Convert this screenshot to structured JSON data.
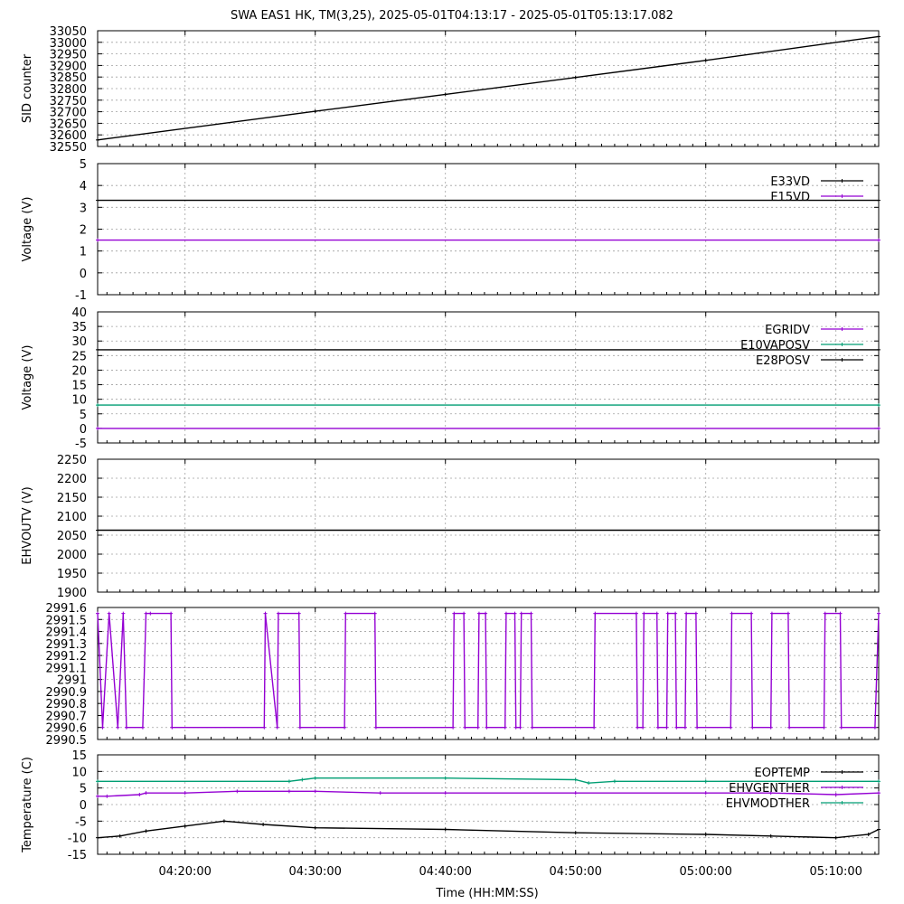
{
  "title": "SWA EAS1 HK, TM(3,25),  2025-05-01T04:13:17 - 2025-05-01T05:13:17.082",
  "xlabel": "Time (HH:MM:SS)",
  "colors": {
    "black": "#000000",
    "purple": "#9400d3",
    "teal": "#009e73",
    "grid": "#a0a0a0"
  },
  "chart_data": [
    {
      "type": "line",
      "ylabel": "SID counter",
      "ylim": [
        32550,
        33050
      ],
      "yticks": [
        "32550",
        "32600",
        "32650",
        "32700",
        "32750",
        "32800",
        "32850",
        "32900",
        "32950",
        "33000",
        "33050"
      ],
      "xlim": [
        "04:13:17",
        "05:13:17"
      ],
      "xticks": [
        "04:20:00",
        "04:30:00",
        "04:40:00",
        "04:50:00",
        "05:00:00",
        "05:10:00"
      ],
      "grid": true,
      "legend": "none",
      "series": [
        {
          "color": "#000000",
          "x": [
            "04:13:17",
            "04:30:00",
            "04:40:00",
            "04:50:00",
            "05:00:00",
            "05:13:17"
          ],
          "values": [
            32578,
            32702,
            32775,
            32848,
            32922,
            33025
          ]
        }
      ]
    },
    {
      "type": "line",
      "ylabel": "Voltage (V)",
      "ylim": [
        -1,
        5
      ],
      "yticks": [
        "-1",
        "0",
        "1",
        "2",
        "3",
        "4",
        "5"
      ],
      "xlim": [
        "04:13:17",
        "05:13:17"
      ],
      "xticks": [
        "04:20:00",
        "04:30:00",
        "04:40:00",
        "04:50:00",
        "05:00:00",
        "05:10:00"
      ],
      "grid": true,
      "legend": "top-right",
      "series": [
        {
          "name": "E33VD",
          "color": "#000000",
          "x": [
            "04:13:17",
            "05:13:17"
          ],
          "values": [
            3.32,
            3.32
          ]
        },
        {
          "name": "E15VD",
          "color": "#9400d3",
          "x": [
            "04:13:17",
            "05:13:17"
          ],
          "values": [
            1.5,
            1.5
          ]
        }
      ]
    },
    {
      "type": "line",
      "ylabel": "Voltage (V)",
      "ylim": [
        -5,
        40
      ],
      "yticks": [
        "-5",
        "0",
        "5",
        "10",
        "15",
        "20",
        "25",
        "30",
        "35",
        "40"
      ],
      "xlim": [
        "04:13:17",
        "05:13:17"
      ],
      "xticks": [
        "04:20:00",
        "04:30:00",
        "04:40:00",
        "04:50:00",
        "05:00:00",
        "05:10:00"
      ],
      "grid": true,
      "legend": "top-right",
      "series": [
        {
          "name": "EGRIDV",
          "color": "#9400d3",
          "x": [
            "04:13:17",
            "05:13:17"
          ],
          "values": [
            0,
            0
          ]
        },
        {
          "name": "E10VAPOSV",
          "color": "#009e73",
          "x": [
            "04:13:17",
            "05:13:17"
          ],
          "values": [
            8,
            8
          ]
        },
        {
          "name": "E28POSV",
          "color": "#000000",
          "x": [
            "04:13:17",
            "05:13:17"
          ],
          "values": [
            27,
            27
          ]
        }
      ]
    },
    {
      "type": "line",
      "ylabel": "EHVOUTV (V)",
      "ylim": [
        1900,
        2250
      ],
      "yticks": [
        "1900",
        "1950",
        "2000",
        "2050",
        "2100",
        "2150",
        "2200",
        "2250"
      ],
      "xlim": [
        "04:13:17",
        "05:13:17"
      ],
      "xticks": [
        "04:20:00",
        "04:30:00",
        "04:40:00",
        "04:50:00",
        "05:00:00",
        "05:10:00"
      ],
      "grid": true,
      "legend": "none",
      "series": [
        {
          "color": "#000000",
          "x": [
            "04:13:17",
            "05:13:17"
          ],
          "values": [
            2063,
            2063
          ]
        }
      ]
    },
    {
      "type": "line",
      "ylabel": "",
      "ylim": [
        2990.5,
        2991.6
      ],
      "yticks": [
        "2990.5",
        "2990.6",
        "2990.7",
        "2990.8",
        "2990.9",
        "2991",
        "2991.1",
        "2991.2",
        "2991.3",
        "2991.4",
        "2991.5",
        "2991.6"
      ],
      "xlim": [
        "04:13:17",
        "05:13:17"
      ],
      "xticks": [
        "04:20:00",
        "04:30:00",
        "04:40:00",
        "04:50:00",
        "05:00:00",
        "05:10:00"
      ],
      "grid": true,
      "legend": "none",
      "series": [
        {
          "color": "#9400d3",
          "x": [
            "04:13:17",
            "04:13:40",
            "04:14:10",
            "04:14:50",
            "04:15:15",
            "04:15:30",
            "04:16:45",
            "04:17:00",
            "04:17:20",
            "04:18:55",
            "04:19:00",
            "04:26:05",
            "04:26:10",
            "04:27:05",
            "04:27:10",
            "04:28:45",
            "04:28:50",
            "04:32:15",
            "04:32:20",
            "04:34:35",
            "04:34:40",
            "04:40:35",
            "04:40:40",
            "04:41:25",
            "04:41:30",
            "04:42:30",
            "04:42:35",
            "04:43:05",
            "04:43:10",
            "04:44:35",
            "04:44:40",
            "04:45:20",
            "04:45:25",
            "04:45:45",
            "04:45:50",
            "04:46:35",
            "04:46:40",
            "04:51:25",
            "04:51:30",
            "04:54:40",
            "04:54:45",
            "04:55:10",
            "04:55:15",
            "04:56:15",
            "04:56:20",
            "04:57:00",
            "04:57:05",
            "04:57:40",
            "04:57:45",
            "04:58:25",
            "04:58:30",
            "04:59:15",
            "04:59:20",
            "05:01:55",
            "05:02:00",
            "05:03:30",
            "05:03:35",
            "05:05:00",
            "05:05:05",
            "05:06:20",
            "05:06:25",
            "05:09:05",
            "05:09:10",
            "05:10:20",
            "05:10:25",
            "05:13:00",
            "05:13:17"
          ],
          "values": [
            2991.55,
            2990.6,
            2991.55,
            2990.6,
            2991.55,
            2990.6,
            2990.6,
            2991.55,
            2991.55,
            2991.55,
            2990.6,
            2990.6,
            2991.55,
            2990.6,
            2991.55,
            2991.55,
            2990.6,
            2990.6,
            2991.55,
            2991.55,
            2990.6,
            2990.6,
            2991.55,
            2991.55,
            2990.6,
            2990.6,
            2991.55,
            2991.55,
            2990.6,
            2990.6,
            2991.55,
            2991.55,
            2990.6,
            2990.6,
            2991.55,
            2991.55,
            2990.6,
            2990.6,
            2991.55,
            2991.55,
            2990.6,
            2990.6,
            2991.55,
            2991.55,
            2990.6,
            2990.6,
            2991.55,
            2991.55,
            2990.6,
            2990.6,
            2991.55,
            2991.55,
            2990.6,
            2990.6,
            2991.55,
            2991.55,
            2990.6,
            2990.6,
            2991.55,
            2991.55,
            2990.6,
            2990.6,
            2991.55,
            2991.55,
            2990.6,
            2990.6,
            2991.55
          ]
        }
      ]
    },
    {
      "type": "line",
      "ylabel": "Temperature (C)",
      "ylim": [
        -15,
        15
      ],
      "yticks": [
        "-15",
        "-10",
        "-5",
        "0",
        "5",
        "10",
        "15"
      ],
      "xlim": [
        "04:13:17",
        "05:13:17"
      ],
      "xticks": [
        "04:20:00",
        "04:30:00",
        "04:40:00",
        "04:50:00",
        "05:00:00",
        "05:10:00"
      ],
      "grid": true,
      "legend": "top-right",
      "series": [
        {
          "name": "EOPTEMP",
          "color": "#000000",
          "x": [
            "04:13:17",
            "04:15:00",
            "04:17:00",
            "04:20:00",
            "04:23:00",
            "04:26:00",
            "04:30:00",
            "04:40:00",
            "04:50:00",
            "05:00:00",
            "05:05:00",
            "05:10:00",
            "05:12:30",
            "05:13:17"
          ],
          "values": [
            -10,
            -9.5,
            -8,
            -6.5,
            -5,
            -6,
            -7,
            -7.5,
            -8.5,
            -9,
            -9.5,
            -10,
            -9,
            -7.5
          ]
        },
        {
          "name": "EHVGENTHER",
          "color": "#9400d3",
          "x": [
            "04:13:17",
            "04:14:00",
            "04:16:30",
            "04:17:00",
            "04:20:00",
            "04:24:00",
            "04:28:00",
            "04:30:00",
            "04:35:00",
            "04:40:00",
            "04:50:00",
            "05:00:00",
            "05:05:00",
            "05:10:00",
            "05:13:17"
          ],
          "values": [
            2.5,
            2.5,
            3,
            3.5,
            3.5,
            4,
            4,
            4,
            3.5,
            3.5,
            3.5,
            3.5,
            3.5,
            3,
            3.5
          ]
        },
        {
          "name": "EHVMODTHER",
          "color": "#009e73",
          "x": [
            "04:13:17",
            "04:28:00",
            "04:29:00",
            "04:30:00",
            "04:40:00",
            "04:50:00",
            "04:51:00",
            "04:53:00",
            "05:00:00",
            "05:13:17"
          ],
          "values": [
            7,
            7,
            7.5,
            8,
            8,
            7.5,
            6.5,
            7,
            7,
            7
          ]
        }
      ]
    }
  ]
}
